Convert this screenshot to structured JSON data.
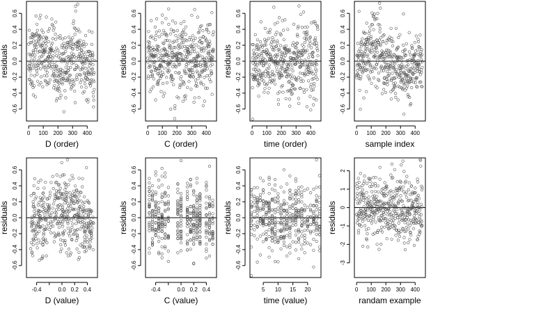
{
  "figure": {
    "background": "#ffffff",
    "point_color": "#555555",
    "line_color": "#000000"
  },
  "chart_data": [
    {
      "type": "scatter",
      "xlabel": "D (order)",
      "ylabel": "residuals",
      "xlim": [
        -15,
        470
      ],
      "ylim": [
        -0.75,
        0.75
      ],
      "xticks": [
        0,
        100,
        200,
        300,
        400
      ],
      "xtick_labels": [
        "0",
        "100",
        "200",
        "300",
        "400"
      ],
      "yticks": [
        -0.6,
        -0.4,
        -0.2,
        0.0,
        0.2,
        0.4,
        0.6
      ],
      "ytick_labels": [
        "-0.6",
        "-0.4",
        "-0.2",
        "0.0",
        "0.2",
        "0.4",
        "0.6"
      ],
      "hline": 0,
      "n_points": 450,
      "x_kind": "index",
      "y_spread": 0.26,
      "pattern": "d_order"
    },
    {
      "type": "scatter",
      "xlabel": "C (order)",
      "ylabel": "residuals",
      "xlim": [
        -15,
        470
      ],
      "ylim": [
        -0.75,
        0.75
      ],
      "xticks": [
        0,
        100,
        200,
        300,
        400
      ],
      "xtick_labels": [
        "0",
        "100",
        "200",
        "300",
        "400"
      ],
      "yticks": [
        -0.6,
        -0.4,
        -0.2,
        0.0,
        0.2,
        0.4,
        0.6
      ],
      "ytick_labels": [
        "-0.6",
        "-0.4",
        "-0.2",
        "0.0",
        "0.2",
        "0.4",
        "0.6"
      ],
      "hline": 0,
      "n_points": 450,
      "x_kind": "index",
      "y_spread": 0.26,
      "pattern": "flat"
    },
    {
      "type": "scatter",
      "xlabel": "time (order)",
      "ylabel": "residuals",
      "xlim": [
        -15,
        470
      ],
      "ylim": [
        -0.75,
        0.75
      ],
      "xticks": [
        0,
        100,
        200,
        300,
        400
      ],
      "xtick_labels": [
        "0",
        "100",
        "200",
        "300",
        "400"
      ],
      "yticks": [
        -0.6,
        -0.4,
        -0.2,
        0.0,
        0.2,
        0.4,
        0.6
      ],
      "ytick_labels": [
        "-0.6",
        "-0.4",
        "-0.2",
        "0.0",
        "0.2",
        "0.4",
        "0.6"
      ],
      "hline": 0,
      "n_points": 450,
      "x_kind": "index",
      "y_spread": 0.26,
      "pattern": "flat"
    },
    {
      "type": "scatter",
      "xlabel": "sample index",
      "ylabel": "residuals",
      "xlim": [
        -15,
        470
      ],
      "ylim": [
        -0.75,
        0.75
      ],
      "xticks": [
        0,
        100,
        200,
        300,
        400
      ],
      "xtick_labels": [
        "0",
        "100",
        "200",
        "300",
        "400"
      ],
      "yticks": [
        -0.6,
        -0.4,
        -0.2,
        0.0,
        0.2,
        0.4,
        0.6
      ],
      "ytick_labels": [
        "-0.6",
        "-0.4",
        "-0.2",
        "0.0",
        "0.2",
        "0.4",
        "0.6"
      ],
      "hline": 0,
      "n_points": 450,
      "x_kind": "index",
      "y_spread": 0.26,
      "pattern": "sample"
    },
    {
      "type": "scatter",
      "xlabel": "D (value)",
      "ylabel": "residuals",
      "xlim": [
        -0.56,
        0.56
      ],
      "ylim": [
        -0.75,
        0.75
      ],
      "xticks": [
        -0.4,
        -0.2,
        0.0,
        0.2,
        0.4
      ],
      "xtick_labels": [
        "-0.4",
        "",
        "0.0",
        "0.2",
        "0.4"
      ],
      "yticks": [
        -0.6,
        -0.4,
        -0.2,
        0.0,
        0.2,
        0.4,
        0.6
      ],
      "ytick_labels": [
        "-0.6",
        "-0.4",
        "-0.2",
        "0.0",
        "0.2",
        "0.4",
        "0.6"
      ],
      "hline": 0,
      "n_points": 450,
      "x_kind": "value",
      "x_range": [
        -0.5,
        0.5
      ],
      "y_spread": 0.26,
      "pattern": "d_value"
    },
    {
      "type": "scatter",
      "xlabel": "C (value)",
      "ylabel": "residuals",
      "xlim": [
        -0.56,
        0.56
      ],
      "ylim": [
        -0.75,
        0.75
      ],
      "xticks": [
        -0.4,
        -0.2,
        0.0,
        0.2,
        0.4
      ],
      "xtick_labels": [
        "-0.4",
        "",
        "0.0",
        "0.2",
        "0.4"
      ],
      "yticks": [
        -0.6,
        -0.4,
        -0.2,
        0.0,
        0.2,
        0.4,
        0.6
      ],
      "ytick_labels": [
        "-0.6",
        "-0.4",
        "-0.2",
        "0.0",
        "0.2",
        "0.4",
        "0.6"
      ],
      "hline": 0,
      "n_points": 450,
      "x_kind": "discrete",
      "x_levels": [
        -0.5,
        -0.45,
        -0.4,
        -0.35,
        -0.3,
        -0.25,
        -0.2,
        -0.05,
        0.0,
        0.1,
        0.15,
        0.2,
        0.25,
        0.3,
        0.4,
        0.45,
        0.5
      ],
      "y_spread": 0.26,
      "pattern": "flat"
    },
    {
      "type": "scatter",
      "xlabel": "time (value)",
      "ylabel": "residuals",
      "xlim": [
        0.5,
        24.5
      ],
      "ylim": [
        -0.75,
        0.75
      ],
      "xticks": [
        5,
        10,
        15,
        20
      ],
      "xtick_labels": [
        "5",
        "10",
        "15",
        "20"
      ],
      "yticks": [
        -0.6,
        -0.4,
        -0.2,
        0.0,
        0.2,
        0.4,
        0.6
      ],
      "ytick_labels": [
        "-0.6",
        "-0.4",
        "-0.2",
        "0.0",
        "0.2",
        "0.4",
        "0.6"
      ],
      "hline": 0,
      "n_points": 450,
      "x_kind": "discrete",
      "x_levels": [
        1,
        2,
        3,
        4,
        5,
        6,
        7,
        8,
        9,
        10,
        11,
        12,
        13,
        14,
        15,
        16,
        17,
        18,
        19,
        20,
        21,
        22,
        23,
        24
      ],
      "y_spread": 0.26,
      "pattern": "flat"
    },
    {
      "type": "scatter",
      "xlabel": "randam example",
      "ylabel": "residuals",
      "xlim": [
        -15,
        470
      ],
      "ylim": [
        -3.8,
        2.7
      ],
      "xticks": [
        0,
        100,
        200,
        300,
        400
      ],
      "xtick_labels": [
        "0",
        "100",
        "200",
        "300",
        "400"
      ],
      "yticks": [
        -3,
        -2,
        -1,
        0,
        1,
        2
      ],
      "ytick_labels": [
        "-3",
        "-2",
        "-1",
        "0",
        "1",
        "2"
      ],
      "hline": 0,
      "n_points": 450,
      "x_kind": "index",
      "y_spread": 1.0,
      "pattern": "flat"
    }
  ]
}
